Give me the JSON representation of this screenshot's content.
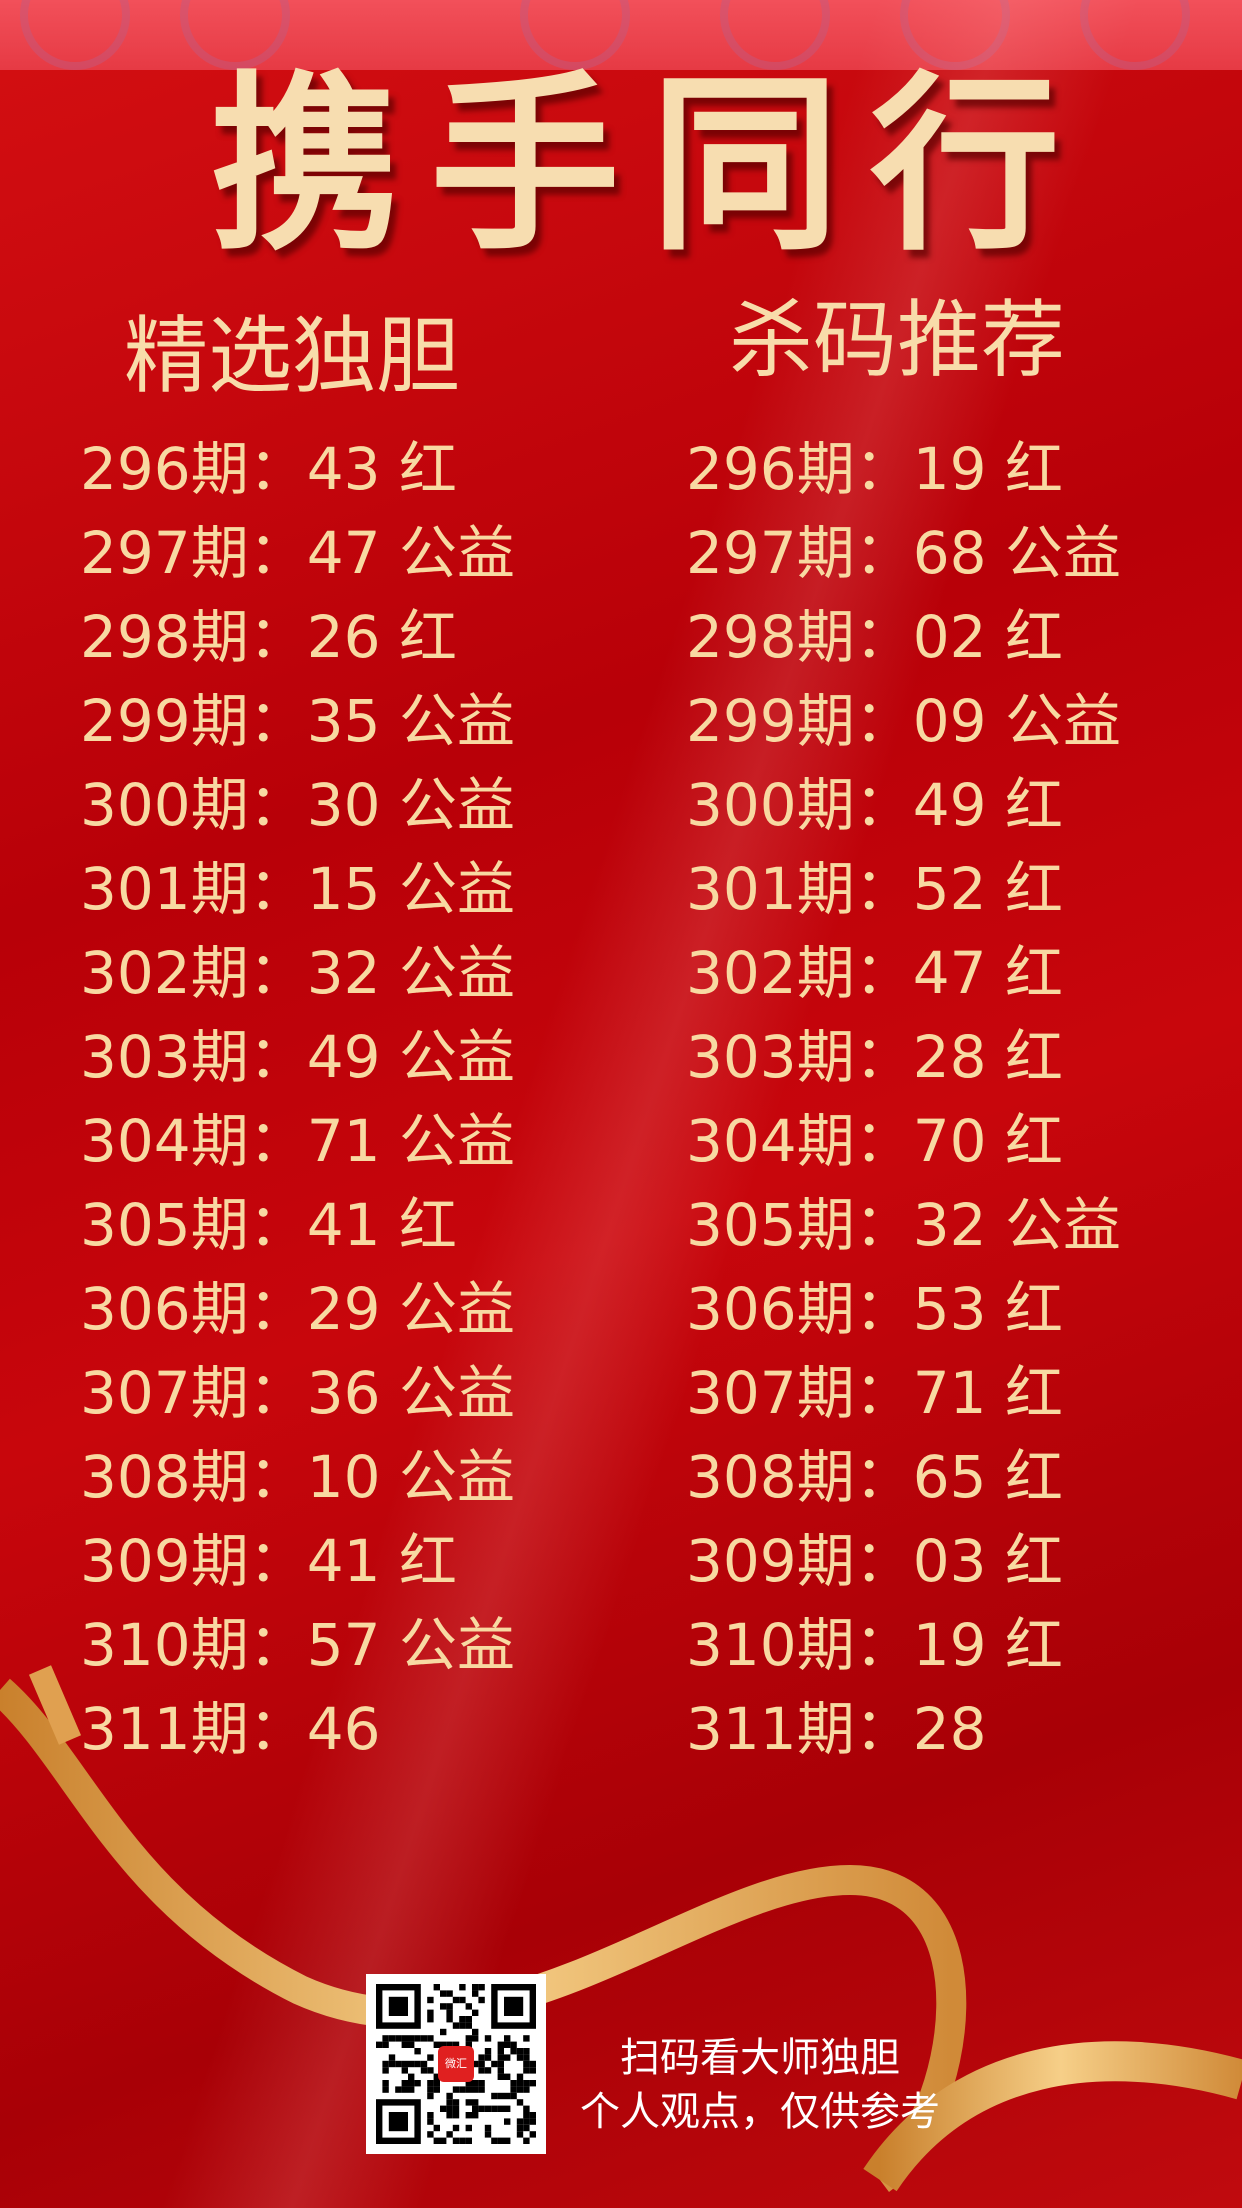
{
  "title": "携手同行",
  "left_column": {
    "header": "精选独胆",
    "rows": [
      "296期：43 红",
      "297期：47 公益",
      "298期：26 红",
      "299期：35 公益",
      "300期：30 公益",
      "301期：15 公益",
      "302期：32 公益",
      "303期：49 公益",
      "304期：71 公益",
      "305期：41 红",
      "306期：29 公益",
      "307期：36 公益",
      "308期：10 公益",
      "309期：41 红",
      "310期：57 公益",
      "311期：46"
    ]
  },
  "right_column": {
    "header": "杀码推荐",
    "rows": [
      "296期：19 红",
      "297期：68 公益",
      "298期：02 红",
      "299期：09 公益",
      "300期：49 红",
      "301期：52 红",
      "302期：47 红",
      "303期：28 红",
      "304期：70 红",
      "305期：32 公益",
      "306期：53 红",
      "307期：71 红",
      "308期：65 红",
      "309期：03 红",
      "310期：19 红",
      "311期：28"
    ]
  },
  "footer": {
    "line1": "扫码看大师独胆",
    "line2": "个人观点，仅供参考"
  },
  "qr_logo_text": "微汇",
  "colors": {
    "background": "#c0060c",
    "text_gold": "#f8d9a2",
    "ribbon": "#e8b060"
  }
}
